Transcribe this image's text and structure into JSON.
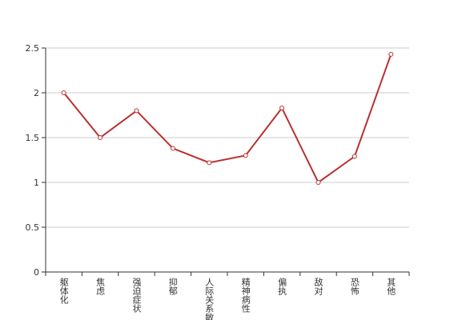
{
  "chart_data": {
    "type": "line",
    "categories": [
      "躯体化",
      "焦虑",
      "强迫症状",
      "抑郁",
      "人际关系敏感",
      "精神病性",
      "偏执",
      "敌对",
      "恐怖",
      "其他"
    ],
    "values": [
      2.0,
      1.5,
      1.8,
      1.38,
      1.22,
      1.3,
      1.83,
      1.0,
      1.29,
      2.43
    ],
    "color": "#b8312f",
    "ylim": [
      0,
      2.5
    ],
    "yticks": [
      0,
      0.5,
      1,
      1.5,
      2,
      2.5
    ],
    "grid": true
  }
}
